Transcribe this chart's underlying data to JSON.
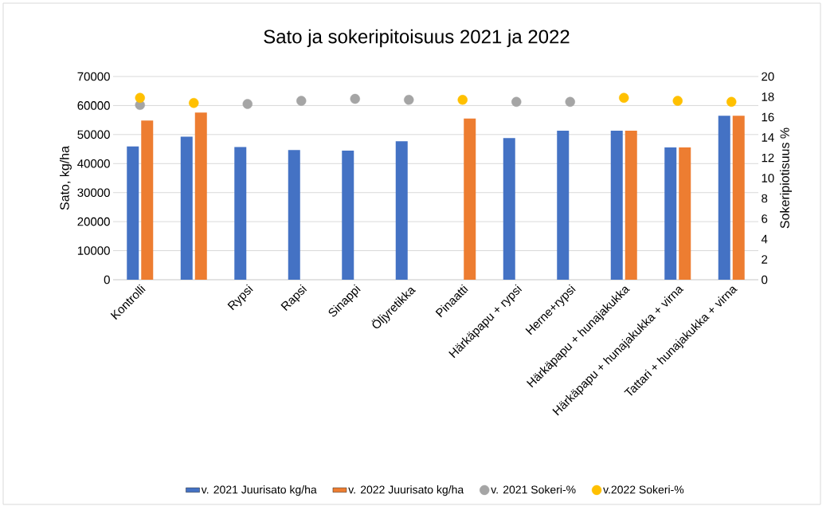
{
  "chart_data": {
    "type": "bar",
    "title": "Sato ja sokeripitoisuus 2021 ja 2022",
    "ylabel": "Sato, kg/ha",
    "y2label": "Sokeripiotisuus %",
    "categories": [
      "Kontrolli",
      null,
      "Rypsi",
      "Rapsi",
      "Sinappi",
      "Öljyretikka",
      "Pinaatti",
      "Härkäpapu + rypsi",
      "Herne+rypsi",
      "Härkäpapu + hunajakukka",
      "Härkäpapu + hunajakukka + virna",
      "Tattari + hunajakukka + virna"
    ],
    "series": [
      {
        "name": "v. 2021 Juurisato kg/ha",
        "color": "#4472c4",
        "values": [
          45900,
          49300,
          45700,
          44700,
          44500,
          47700,
          null,
          48800,
          51300,
          51300,
          45600,
          56500
        ]
      },
      {
        "name": "v. 2022 Juurisato kg/ha",
        "color": "#ed7d31",
        "values": [
          54800,
          57600,
          null,
          null,
          null,
          null,
          55500,
          null,
          null,
          51300,
          45600,
          56500
        ]
      },
      {
        "name": "v. 2021 Sokeri-%",
        "type": "scatter",
        "axis": "y2",
        "color": "#a5a5a5",
        "values": [
          17.2,
          null,
          17.3,
          17.6,
          17.8,
          17.7,
          null,
          17.5,
          17.5,
          null,
          null,
          null
        ]
      },
      {
        "name": "v.2022 Sokeri-%",
        "type": "scatter",
        "axis": "y2",
        "color": "#ffc000",
        "values": [
          17.9,
          17.4,
          null,
          null,
          null,
          null,
          17.7,
          null,
          null,
          17.9,
          17.6,
          17.5
        ]
      }
    ],
    "ylim": [
      0,
      70000
    ],
    "yticks": [
      0,
      10000,
      20000,
      30000,
      40000,
      50000,
      60000,
      70000
    ],
    "y2lim": [
      0,
      20
    ],
    "y2ticks": [
      0,
      2,
      4,
      6,
      8,
      10,
      12,
      14,
      16,
      18,
      20
    ],
    "grid": "y",
    "legend": "bottom"
  }
}
